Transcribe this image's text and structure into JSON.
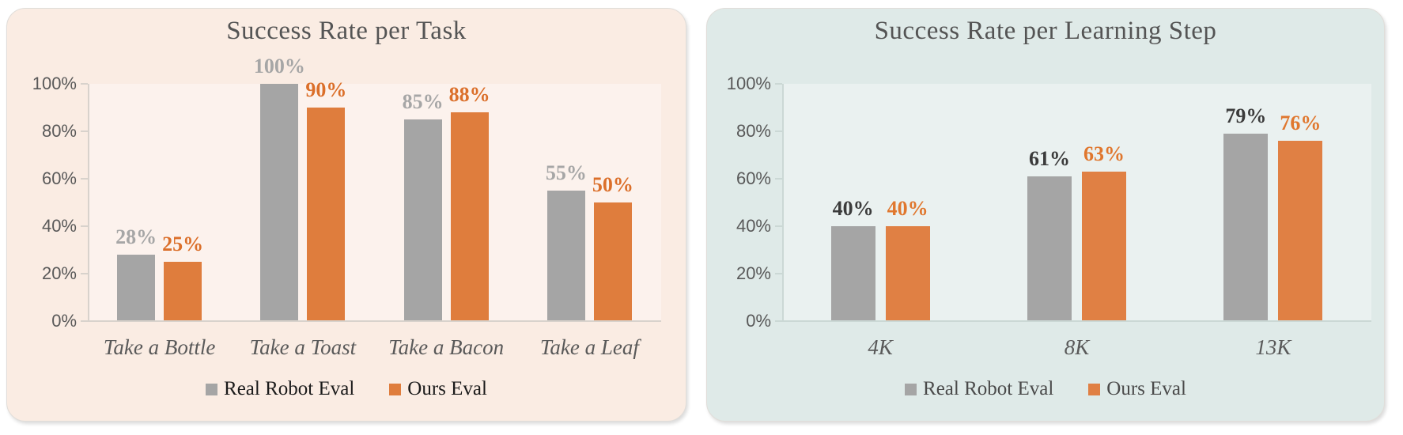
{
  "page": {
    "background": "#FFFFFF"
  },
  "chart_data": [
    {
      "type": "bar",
      "title": "Success Rate per Task",
      "title_color": "#545454",
      "background": "#FAECE3",
      "categories": [
        "Take a Bottle",
        "Take a Toast",
        "Take a Bacon",
        "Take a Leaf"
      ],
      "series": [
        {
          "name": "Real Robot Eval",
          "values": [
            28,
            100,
            85,
            55
          ],
          "labels": [
            "28%",
            "100%",
            "85%",
            "55%"
          ],
          "color": "#A5A5A5",
          "label_color": "#A6A6A6"
        },
        {
          "name": "Ours Eval",
          "values": [
            25,
            90,
            88,
            50
          ],
          "labels": [
            "25%",
            "90%",
            "88%",
            "50%"
          ],
          "color": "#DF7D3D",
          "label_color": "#DB6F2A"
        }
      ],
      "xlabel": "",
      "ylabel": "",
      "ylim": [
        0,
        100
      ],
      "y_ticks": [
        "100%",
        "80%",
        "60%",
        "40%",
        "20%",
        "0%"
      ],
      "grid": false,
      "legend_position": "bottom",
      "legend_text_color": "#1A1A1A",
      "axis_color": "#D8D2CC",
      "tick_label_color": "#595959",
      "category_label_color": "#595959"
    },
    {
      "type": "bar",
      "title": "Success Rate per Learning Step",
      "title_color": "#545454",
      "background": "#DFEAE8",
      "categories": [
        "4K",
        "8K",
        "13K"
      ],
      "series": [
        {
          "name": "Real Robot Eval",
          "values": [
            40,
            61,
            79
          ],
          "labels": [
            "40%",
            "61%",
            "79%"
          ],
          "color": "#A5A5A5",
          "label_color": "#3B3B3B"
        },
        {
          "name": "Ours Eval",
          "values": [
            40,
            63,
            76
          ],
          "labels": [
            "40%",
            "63%",
            "76%"
          ],
          "color": "#E08044",
          "label_color": "#E0772E"
        }
      ],
      "xlabel": "",
      "ylabel": "",
      "ylim": [
        0,
        100
      ],
      "y_ticks": [
        "100%",
        "80%",
        "60%",
        "40%",
        "20%",
        "0%"
      ],
      "grid": false,
      "legend_position": "bottom",
      "legend_text_color": "#4A4A4A",
      "axis_color": "#CBD8D5",
      "tick_label_color": "#595959",
      "category_label_color": "#595959"
    }
  ]
}
